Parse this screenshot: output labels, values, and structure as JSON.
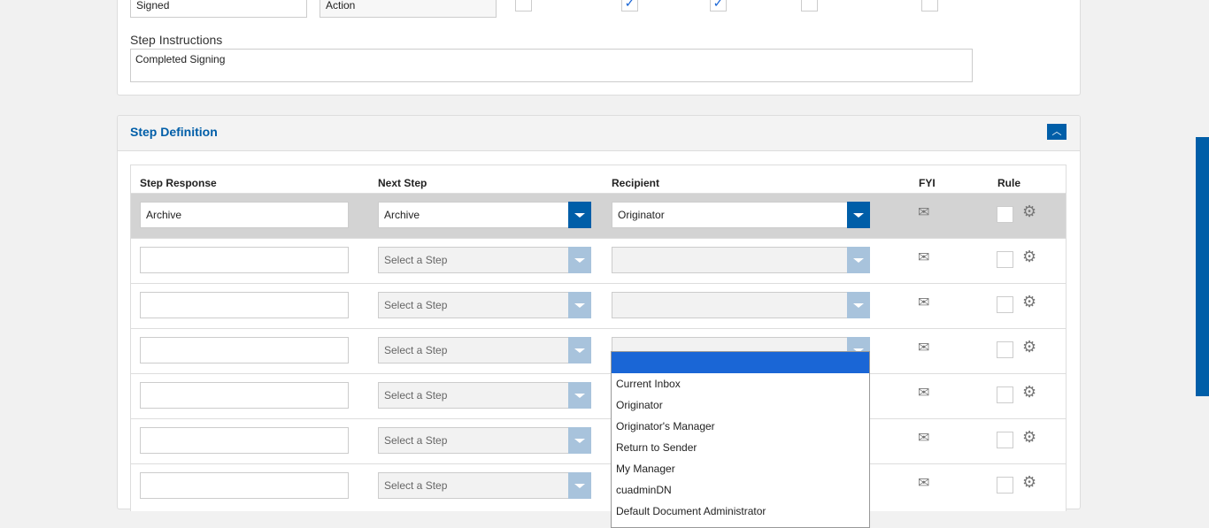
{
  "top": {
    "name_value": "Signed",
    "type_value": "Action",
    "checkboxes": [
      false,
      true,
      true,
      false,
      false
    ],
    "instructions_label": "Step Instructions",
    "instructions_value": "Completed Signing"
  },
  "step_definition": {
    "title": "Step Definition",
    "headers": {
      "response": "Step Response",
      "next": "Next Step",
      "recipient": "Recipient",
      "fyi": "FYI",
      "rule": "Rule"
    },
    "rows": [
      {
        "response": "Archive",
        "next": "Archive",
        "recipient": "Originator",
        "active": true
      },
      {
        "response": "",
        "next": "Select a Step",
        "recipient": ""
      },
      {
        "response": "",
        "next": "Select a Step",
        "recipient": ""
      },
      {
        "response": "",
        "next": "Select a Step",
        "recipient": ""
      },
      {
        "response": "",
        "next": "Select a Step",
        "recipient": ""
      },
      {
        "response": "",
        "next": "Select a Step",
        "recipient": ""
      },
      {
        "response": "",
        "next": "Select a Step",
        "recipient": ""
      }
    ]
  },
  "recipient_dropdown": {
    "options": [
      "",
      "Current Inbox",
      "Originator",
      "Originator's Manager",
      "Return to Sender",
      "My Manager",
      "cuadminDN",
      "Default Document Administrator"
    ],
    "highlighted": 0
  },
  "colors": {
    "accent": "#005ea8",
    "highlight": "#1a66d6"
  }
}
